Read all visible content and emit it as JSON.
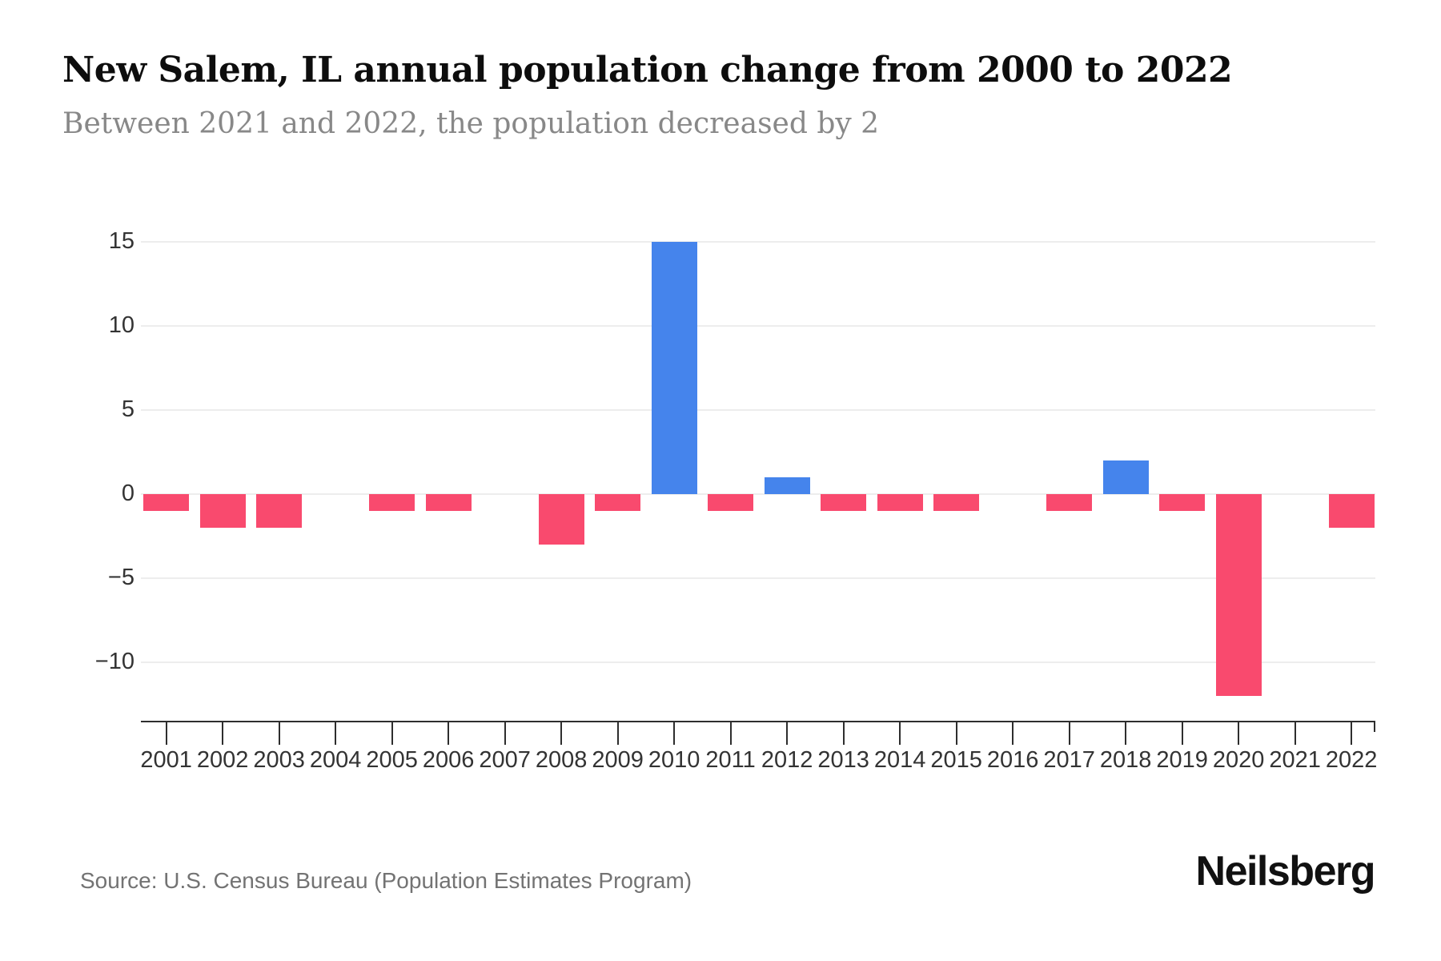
{
  "header": {
    "title": "New Salem, IL annual population change from 2000 to 2022",
    "subtitle": "Between 2021 and 2022, the population decreased by 2"
  },
  "footer": {
    "source": "Source: U.S. Census Bureau (Population Estimates Program)",
    "brand": "Neilsberg"
  },
  "chart_data": {
    "type": "bar",
    "title": "New Salem, IL annual population change from 2000 to 2022",
    "subtitle": "Between 2021 and 2022, the population decreased by 2",
    "xlabel": "",
    "ylabel": "",
    "categories": [
      "2001",
      "2002",
      "2003",
      "2004",
      "2005",
      "2006",
      "2007",
      "2008",
      "2009",
      "2010",
      "2011",
      "2012",
      "2013",
      "2014",
      "2015",
      "2016",
      "2017",
      "2018",
      "2019",
      "2020",
      "2021",
      "2022"
    ],
    "values": [
      -1,
      -2,
      -2,
      0,
      -1,
      -1,
      0,
      -3,
      -1,
      15,
      -1,
      1,
      -1,
      -1,
      -1,
      0,
      -1,
      2,
      -1,
      -12,
      0,
      -2
    ],
    "y_ticks": [
      15,
      10,
      5,
      0,
      -5,
      -10
    ],
    "y_tick_labels": [
      "15",
      "10",
      "5",
      "0",
      "−5",
      "−10"
    ],
    "ylim": [
      -13.5,
      15.75
    ],
    "grid": "horizontal",
    "legend_position": "none",
    "colors": {
      "positive_bar": "#4584ec",
      "negative_bar": "#f94a6e",
      "gridline": "#ededed",
      "axis": "#2e2e2e",
      "tick_label": "#333333"
    }
  }
}
